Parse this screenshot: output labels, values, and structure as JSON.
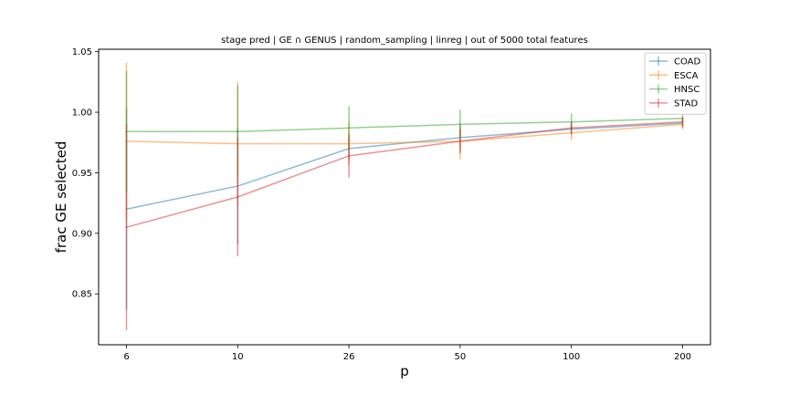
{
  "chart_data": {
    "type": "line",
    "title": "stage pred | GE ∩ GENUS | random_sampling | linreg | out of 5000 total features",
    "xlabel": "p",
    "ylabel": "frac GE selected",
    "x_scale": "categorical",
    "categories": [
      "6",
      "10",
      "26",
      "50",
      "100",
      "200"
    ],
    "ylim": [
      0.808,
      1.052
    ],
    "yticks": [
      0.85,
      0.9,
      0.95,
      1.0,
      1.05
    ],
    "ytick_labels": [
      "0.85",
      "0.90",
      "0.95",
      "1.00",
      "1.05"
    ],
    "grid": false,
    "legend_position": "top-right",
    "series": [
      {
        "name": "COAD",
        "color": "#1f77b4",
        "values": [
          0.92,
          0.939,
          0.97,
          0.979,
          0.986,
          0.991
        ],
        "errors": [
          0.083,
          0.048,
          0.01,
          0.01,
          0.005,
          0.004
        ]
      },
      {
        "name": "ESCA",
        "color": "#ff7f0e",
        "values": [
          0.976,
          0.974,
          0.974,
          0.976,
          0.983,
          0.99
        ],
        "errors": [
          0.065,
          0.051,
          0.018,
          0.015,
          0.006,
          0.004
        ]
      },
      {
        "name": "HNSC",
        "color": "#2ca02c",
        "values": [
          0.984,
          0.984,
          0.987,
          0.99,
          0.992,
          0.995
        ],
        "errors": [
          0.05,
          0.038,
          0.018,
          0.012,
          0.007,
          0.003
        ]
      },
      {
        "name": "STAD",
        "color": "#d62728",
        "values": [
          0.905,
          0.93,
          0.964,
          0.976,
          0.987,
          0.992
        ],
        "errors": [
          0.085,
          0.049,
          0.018,
          0.01,
          0.005,
          0.004
        ]
      }
    ]
  }
}
